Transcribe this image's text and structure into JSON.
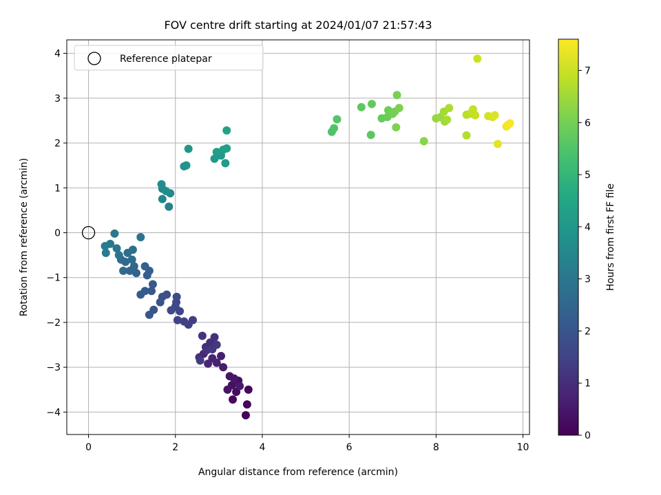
{
  "chart_data": {
    "type": "scatter",
    "title": "FOV centre drift starting at 2024/01/07 21:57:43",
    "xlabel": "Angular distance from reference (arcmin)",
    "ylabel": "Rotation from reference (arcmin)",
    "xlim": [
      -0.5,
      10.15
    ],
    "ylim": [
      -4.5,
      4.3
    ],
    "xticks": [
      0,
      2,
      4,
      6,
      8,
      10
    ],
    "xtick_labels": [
      "0",
      "2",
      "4",
      "6",
      "8",
      "10"
    ],
    "yticks": [
      -4,
      -3,
      -2,
      -1,
      0,
      1,
      2,
      3,
      4
    ],
    "ytick_labels": [
      "−4",
      "−3",
      "−2",
      "−1",
      "0",
      "1",
      "2",
      "3",
      "4"
    ],
    "grid": true,
    "legend": {
      "placement": "top-left",
      "entries": [
        "Reference platepar"
      ]
    },
    "reference_point": {
      "x": 0,
      "y": 0,
      "marker": "open-circle"
    },
    "colorbar": {
      "label": "Hours from first FF file",
      "range": [
        0,
        7.6
      ],
      "ticks": [
        0,
        1,
        2,
        3,
        4,
        5,
        6,
        7
      ],
      "tick_labels": [
        "0",
        "1",
        "2",
        "3",
        "4",
        "5",
        "6",
        "7"
      ],
      "colormap": "viridis"
    },
    "points": [
      {
        "x": 3.62,
        "y": -4.07,
        "h": 0.05
      },
      {
        "x": 3.65,
        "y": -3.83,
        "h": 0.1
      },
      {
        "x": 3.68,
        "y": -3.5,
        "h": 0.15
      },
      {
        "x": 3.32,
        "y": -3.72,
        "h": 0.2
      },
      {
        "x": 3.4,
        "y": -3.55,
        "h": 0.25
      },
      {
        "x": 3.45,
        "y": -3.3,
        "h": 0.3
      },
      {
        "x": 3.3,
        "y": -3.4,
        "h": 0.35
      },
      {
        "x": 3.2,
        "y": -3.5,
        "h": 0.4
      },
      {
        "x": 3.25,
        "y": -3.2,
        "h": 0.45
      },
      {
        "x": 3.35,
        "y": -3.25,
        "h": 0.5
      },
      {
        "x": 3.48,
        "y": -3.42,
        "h": 0.55
      },
      {
        "x": 3.1,
        "y": -3.0,
        "h": 0.6
      },
      {
        "x": 3.05,
        "y": -2.75,
        "h": 0.65
      },
      {
        "x": 2.95,
        "y": -2.9,
        "h": 0.7
      },
      {
        "x": 2.85,
        "y": -2.8,
        "h": 0.75
      },
      {
        "x": 2.75,
        "y": -2.92,
        "h": 0.8
      },
      {
        "x": 2.65,
        "y": -2.7,
        "h": 0.85
      },
      {
        "x": 2.55,
        "y": -2.78,
        "h": 0.9
      },
      {
        "x": 2.7,
        "y": -2.55,
        "h": 0.95
      },
      {
        "x": 2.8,
        "y": -2.45,
        "h": 1.0
      },
      {
        "x": 2.9,
        "y": -2.33,
        "h": 1.05
      },
      {
        "x": 2.62,
        "y": -2.3,
        "h": 1.1
      },
      {
        "x": 2.72,
        "y": -2.62,
        "h": 1.15
      },
      {
        "x": 2.85,
        "y": -2.6,
        "h": 1.2
      },
      {
        "x": 2.95,
        "y": -2.5,
        "h": 1.25
      },
      {
        "x": 2.57,
        "y": -2.85,
        "h": 1.3
      },
      {
        "x": 2.4,
        "y": -1.95,
        "h": 1.35
      },
      {
        "x": 2.3,
        "y": -2.05,
        "h": 1.4
      },
      {
        "x": 2.2,
        "y": -1.98,
        "h": 1.45
      },
      {
        "x": 2.05,
        "y": -1.95,
        "h": 1.5
      },
      {
        "x": 2.1,
        "y": -1.75,
        "h": 1.55
      },
      {
        "x": 2.0,
        "y": -1.65,
        "h": 1.6
      },
      {
        "x": 1.9,
        "y": -1.73,
        "h": 1.65
      },
      {
        "x": 2.02,
        "y": -1.55,
        "h": 1.7
      },
      {
        "x": 2.03,
        "y": -1.43,
        "h": 1.75
      },
      {
        "x": 1.8,
        "y": -1.38,
        "h": 1.8
      },
      {
        "x": 1.7,
        "y": -1.43,
        "h": 1.85
      },
      {
        "x": 1.65,
        "y": -1.55,
        "h": 1.9
      },
      {
        "x": 1.5,
        "y": -1.72,
        "h": 1.95
      },
      {
        "x": 1.4,
        "y": -1.83,
        "h": 2.0
      },
      {
        "x": 1.45,
        "y": -1.3,
        "h": 2.05
      },
      {
        "x": 1.48,
        "y": -1.15,
        "h": 2.1
      },
      {
        "x": 1.3,
        "y": -1.3,
        "h": 2.15
      },
      {
        "x": 1.2,
        "y": -1.38,
        "h": 2.2
      },
      {
        "x": 1.35,
        "y": -0.95,
        "h": 2.25
      },
      {
        "x": 1.4,
        "y": -0.85,
        "h": 2.3
      },
      {
        "x": 1.3,
        "y": -0.75,
        "h": 2.35
      },
      {
        "x": 1.1,
        "y": -0.9,
        "h": 2.4
      },
      {
        "x": 1.05,
        "y": -0.75,
        "h": 2.45
      },
      {
        "x": 0.95,
        "y": -0.85,
        "h": 2.5
      },
      {
        "x": 0.85,
        "y": -0.65,
        "h": 2.55
      },
      {
        "x": 0.75,
        "y": -0.6,
        "h": 2.6
      },
      {
        "x": 0.8,
        "y": -0.85,
        "h": 2.65
      },
      {
        "x": 1.0,
        "y": -0.6,
        "h": 2.7
      },
      {
        "x": 0.9,
        "y": -0.45,
        "h": 2.75
      },
      {
        "x": 1.02,
        "y": -0.38,
        "h": 2.8
      },
      {
        "x": 1.2,
        "y": -0.1,
        "h": 2.85
      },
      {
        "x": 0.7,
        "y": -0.5,
        "h": 2.9
      },
      {
        "x": 0.65,
        "y": -0.35,
        "h": 2.95
      },
      {
        "x": 0.6,
        "y": -0.02,
        "h": 3.0
      },
      {
        "x": 0.5,
        "y": -0.25,
        "h": 3.05
      },
      {
        "x": 0.4,
        "y": -0.45,
        "h": 3.1
      },
      {
        "x": 0.38,
        "y": -0.3,
        "h": 3.15
      },
      {
        "x": 1.85,
        "y": 0.58,
        "h": 3.35
      },
      {
        "x": 1.7,
        "y": 0.75,
        "h": 3.45
      },
      {
        "x": 1.88,
        "y": 0.88,
        "h": 3.55
      },
      {
        "x": 1.7,
        "y": 0.98,
        "h": 3.6
      },
      {
        "x": 1.68,
        "y": 1.08,
        "h": 3.65
      },
      {
        "x": 1.78,
        "y": 0.93,
        "h": 3.7
      },
      {
        "x": 2.2,
        "y": 1.48,
        "h": 3.85
      },
      {
        "x": 2.25,
        "y": 1.5,
        "h": 3.9
      },
      {
        "x": 2.3,
        "y": 1.87,
        "h": 3.95
      },
      {
        "x": 2.9,
        "y": 1.65,
        "h": 4.05
      },
      {
        "x": 3.05,
        "y": 1.72,
        "h": 4.1
      },
      {
        "x": 3.15,
        "y": 1.55,
        "h": 4.15
      },
      {
        "x": 2.95,
        "y": 1.8,
        "h": 4.2
      },
      {
        "x": 3.1,
        "y": 1.85,
        "h": 4.25
      },
      {
        "x": 3.18,
        "y": 1.88,
        "h": 4.3
      },
      {
        "x": 3.18,
        "y": 2.28,
        "h": 4.35
      },
      {
        "x": 5.6,
        "y": 2.25,
        "h": 5.45
      },
      {
        "x": 5.65,
        "y": 2.33,
        "h": 5.5
      },
      {
        "x": 5.72,
        "y": 2.53,
        "h": 5.55
      },
      {
        "x": 6.5,
        "y": 2.18,
        "h": 5.65
      },
      {
        "x": 6.28,
        "y": 2.8,
        "h": 5.7
      },
      {
        "x": 6.52,
        "y": 2.87,
        "h": 5.75
      },
      {
        "x": 6.75,
        "y": 2.55,
        "h": 5.8
      },
      {
        "x": 6.88,
        "y": 2.58,
        "h": 5.85
      },
      {
        "x": 6.9,
        "y": 2.73,
        "h": 5.9
      },
      {
        "x": 7.0,
        "y": 2.65,
        "h": 5.95
      },
      {
        "x": 7.05,
        "y": 2.7,
        "h": 6.0
      },
      {
        "x": 7.1,
        "y": 3.07,
        "h": 6.05
      },
      {
        "x": 7.15,
        "y": 2.78,
        "h": 6.1
      },
      {
        "x": 7.08,
        "y": 2.35,
        "h": 6.12
      },
      {
        "x": 7.72,
        "y": 2.04,
        "h": 6.25
      },
      {
        "x": 8.0,
        "y": 2.55,
        "h": 6.4
      },
      {
        "x": 8.1,
        "y": 2.58,
        "h": 6.45
      },
      {
        "x": 8.2,
        "y": 2.48,
        "h": 6.5
      },
      {
        "x": 8.18,
        "y": 2.7,
        "h": 6.55
      },
      {
        "x": 8.25,
        "y": 2.52,
        "h": 6.6
      },
      {
        "x": 8.3,
        "y": 2.78,
        "h": 6.65
      },
      {
        "x": 8.7,
        "y": 2.17,
        "h": 6.75
      },
      {
        "x": 8.7,
        "y": 2.63,
        "h": 6.8
      },
      {
        "x": 8.78,
        "y": 2.65,
        "h": 6.85
      },
      {
        "x": 8.85,
        "y": 2.75,
        "h": 6.9
      },
      {
        "x": 8.9,
        "y": 2.62,
        "h": 6.95
      },
      {
        "x": 8.95,
        "y": 3.88,
        "h": 7.0
      },
      {
        "x": 9.2,
        "y": 2.6,
        "h": 7.1
      },
      {
        "x": 9.3,
        "y": 2.58,
        "h": 7.15
      },
      {
        "x": 9.35,
        "y": 2.62,
        "h": 7.2
      },
      {
        "x": 9.42,
        "y": 1.98,
        "h": 7.3
      },
      {
        "x": 9.62,
        "y": 2.37,
        "h": 7.4
      },
      {
        "x": 9.65,
        "y": 2.4,
        "h": 7.5
      },
      {
        "x": 9.7,
        "y": 2.44,
        "h": 7.55
      }
    ]
  }
}
